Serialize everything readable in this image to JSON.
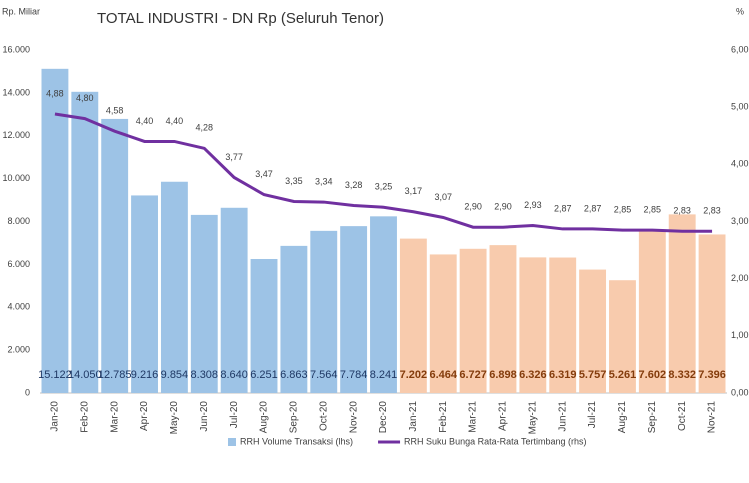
{
  "chart_data": {
    "type": "bar-line",
    "title": "TOTAL INDUSTRI - DN Rp (Seluruh Tenor)",
    "y_label": "Rp. Miliar",
    "y2_label": "%",
    "categories": [
      "Jan-20",
      "Feb-20",
      "Mar-20",
      "Apr-20",
      "May-20",
      "Jun-20",
      "Jul-20",
      "Aug-20",
      "Sep-20",
      "Oct-20",
      "Nov-20",
      "Dec-20",
      "Jan-21",
      "Feb-21",
      "Mar-21",
      "Apr-21",
      "May-21",
      "Jun-21",
      "Jul-21",
      "Aug-21",
      "Sep-21",
      "Oct-21",
      "Nov-21"
    ],
    "series": [
      {
        "name": "RRH Volume Transaksi (lhs)",
        "type": "bar",
        "axis": "y",
        "color": "#9dc3e6",
        "colors": [
          "#9dc3e6",
          "#9dc3e6",
          "#9dc3e6",
          "#9dc3e6",
          "#9dc3e6",
          "#9dc3e6",
          "#9dc3e6",
          "#9dc3e6",
          "#9dc3e6",
          "#9dc3e6",
          "#9dc3e6",
          "#9dc3e6",
          "#f8cbad",
          "#f8cbad",
          "#f8cbad",
          "#f8cbad",
          "#f8cbad",
          "#f8cbad",
          "#f8cbad",
          "#f8cbad",
          "#f8cbad",
          "#f8cbad",
          "#f8cbad"
        ],
        "values": [
          15122,
          14050,
          12785,
          9216,
          9854,
          8308,
          8640,
          6251,
          6863,
          7564,
          7784,
          8241,
          7202,
          6464,
          6727,
          6898,
          6326,
          6319,
          5757,
          5261,
          7602,
          8332,
          7396
        ],
        "value_labels": [
          "15.122",
          "14.050",
          "12.785",
          "9.216",
          "9.854",
          "8.308",
          "8.640",
          "6.251",
          "6.863",
          "7.564",
          "7.784",
          "8.241",
          "7.202",
          "6.464",
          "6.727",
          "6.898",
          "6.326",
          "6.319",
          "5.757",
          "5.261",
          "7.602",
          "8.332",
          "7.396"
        ]
      },
      {
        "name": "RRH Suku Bunga Rata-Rata Tertimbang (rhs)",
        "type": "line",
        "axis": "y2",
        "color": "#7030a0",
        "values": [
          4.88,
          4.8,
          4.58,
          4.4,
          4.4,
          4.28,
          3.77,
          3.47,
          3.35,
          3.34,
          3.28,
          3.25,
          3.17,
          3.07,
          2.9,
          2.9,
          2.93,
          2.87,
          2.87,
          2.85,
          2.85,
          2.83,
          2.83
        ],
        "value_labels": [
          "4,88",
          "4,80",
          "4,58",
          "4,40",
          "4,40",
          "4,28",
          "3,77",
          "3,47",
          "3,35",
          "3,34",
          "3,28",
          "3,25",
          "3,17",
          "3,07",
          "2,90",
          "2,90",
          "2,93",
          "2,87",
          "2,87",
          "2,85",
          "2,85",
          "2,83",
          "2,83"
        ]
      }
    ],
    "ylim": [
      0,
      16000
    ],
    "yticks": [
      0,
      {
        "value": 2000,
        "label": "2.000"
      },
      {
        "value": 4000,
        "label": "4.000"
      },
      {
        "value": 6000,
        "label": "6.000"
      },
      {
        "value": 8000,
        "label": "8.000"
      },
      {
        "value": 10000,
        "label": "10.000"
      },
      {
        "value": 12000,
        "label": "12.000"
      },
      {
        "value": 14000,
        "label": "14.000"
      },
      {
        "value": 16000,
        "label": "16.000"
      }
    ],
    "y2lim": [
      0,
      6
    ],
    "y2ticks": [
      {
        "value": 0,
        "label": "0,00"
      },
      {
        "value": 1,
        "label": "1,00"
      },
      {
        "value": 2,
        "label": "2,00"
      },
      {
        "value": 3,
        "label": "3,00"
      },
      {
        "value": 4,
        "label": "4,00"
      },
      {
        "value": 5,
        "label": "5,00"
      },
      {
        "value": 6,
        "label": "6,00"
      }
    ],
    "grid": false,
    "legend": "bottom"
  }
}
